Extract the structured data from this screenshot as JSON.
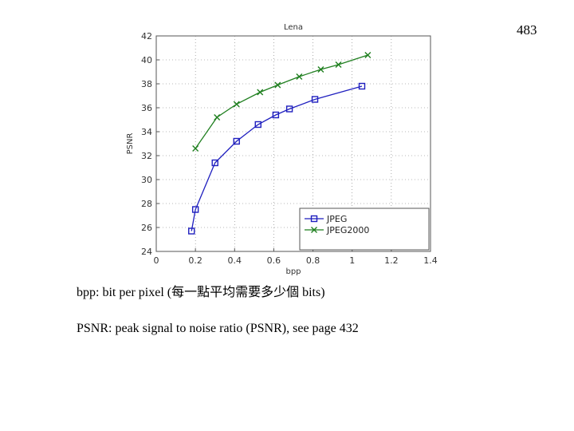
{
  "page_number": "483",
  "notes": {
    "bpp": "bpp:  bit per pixel (每一點平均需要多少個 bits)",
    "psnr": "PSNR: peak signal to noise ratio (PSNR), see page 432"
  },
  "chart_data": {
    "type": "line",
    "title": "Lena",
    "xlabel": "bpp",
    "ylabel": "PSNR",
    "xlim": [
      0,
      1.4
    ],
    "ylim": [
      24,
      42
    ],
    "xticks": [
      "0",
      "0.2",
      "0.4",
      "0.6",
      "0.8",
      "1",
      "1.2",
      "1.4"
    ],
    "yticks": [
      "24",
      "26",
      "28",
      "30",
      "32",
      "34",
      "36",
      "38",
      "40",
      "42"
    ],
    "grid": true,
    "legend_position": "lower-right",
    "series": [
      {
        "name": "JPEG",
        "color": "#1f1fbf",
        "marker": "square",
        "x": [
          0.18,
          0.2,
          0.3,
          0.41,
          0.52,
          0.61,
          0.68,
          0.81,
          1.05
        ],
        "y": [
          25.7,
          27.5,
          31.4,
          33.2,
          34.6,
          35.4,
          35.9,
          36.7,
          37.8
        ]
      },
      {
        "name": "JPEG2000",
        "color": "#1f7f1f",
        "marker": "x",
        "x": [
          0.2,
          0.31,
          0.41,
          0.53,
          0.62,
          0.73,
          0.84,
          0.93,
          1.08
        ],
        "y": [
          32.6,
          35.2,
          36.3,
          37.3,
          37.9,
          38.6,
          39.2,
          39.6,
          40.4
        ]
      }
    ]
  }
}
